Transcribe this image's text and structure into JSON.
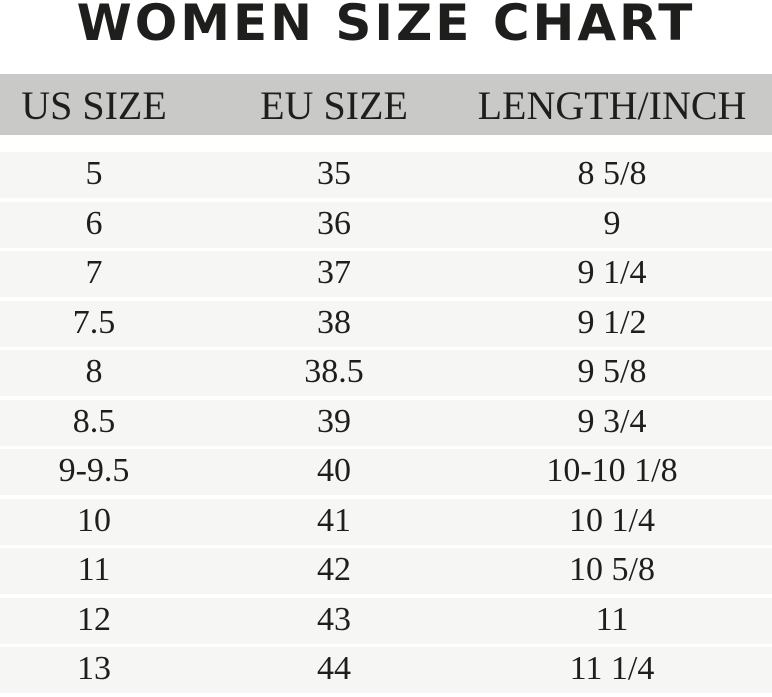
{
  "title": "WOMEN SIZE CHART",
  "table": {
    "headers": [
      "US SIZE",
      "EU SIZE",
      "LENGTH/INCH"
    ],
    "rows": [
      [
        "5",
        "35",
        "8 5/8"
      ],
      [
        "6",
        "36",
        "9"
      ],
      [
        "7",
        "37",
        "9 1/4"
      ],
      [
        "7.5",
        "38",
        "9 1/2"
      ],
      [
        "8",
        "38.5",
        "9 5/8"
      ],
      [
        "8.5",
        "39",
        "9 3/4"
      ],
      [
        "9-9.5",
        "40",
        "10-10 1/8"
      ],
      [
        "10",
        "41",
        "10 1/4"
      ],
      [
        "11",
        "42",
        "10 5/8"
      ],
      [
        "12",
        "43",
        "11"
      ],
      [
        "13",
        "44",
        "11 1/4"
      ]
    ]
  },
  "colors": {
    "header_bg": "#c9c9c7",
    "row_bg": "#f6f6f4",
    "text": "#1e1e1c"
  }
}
